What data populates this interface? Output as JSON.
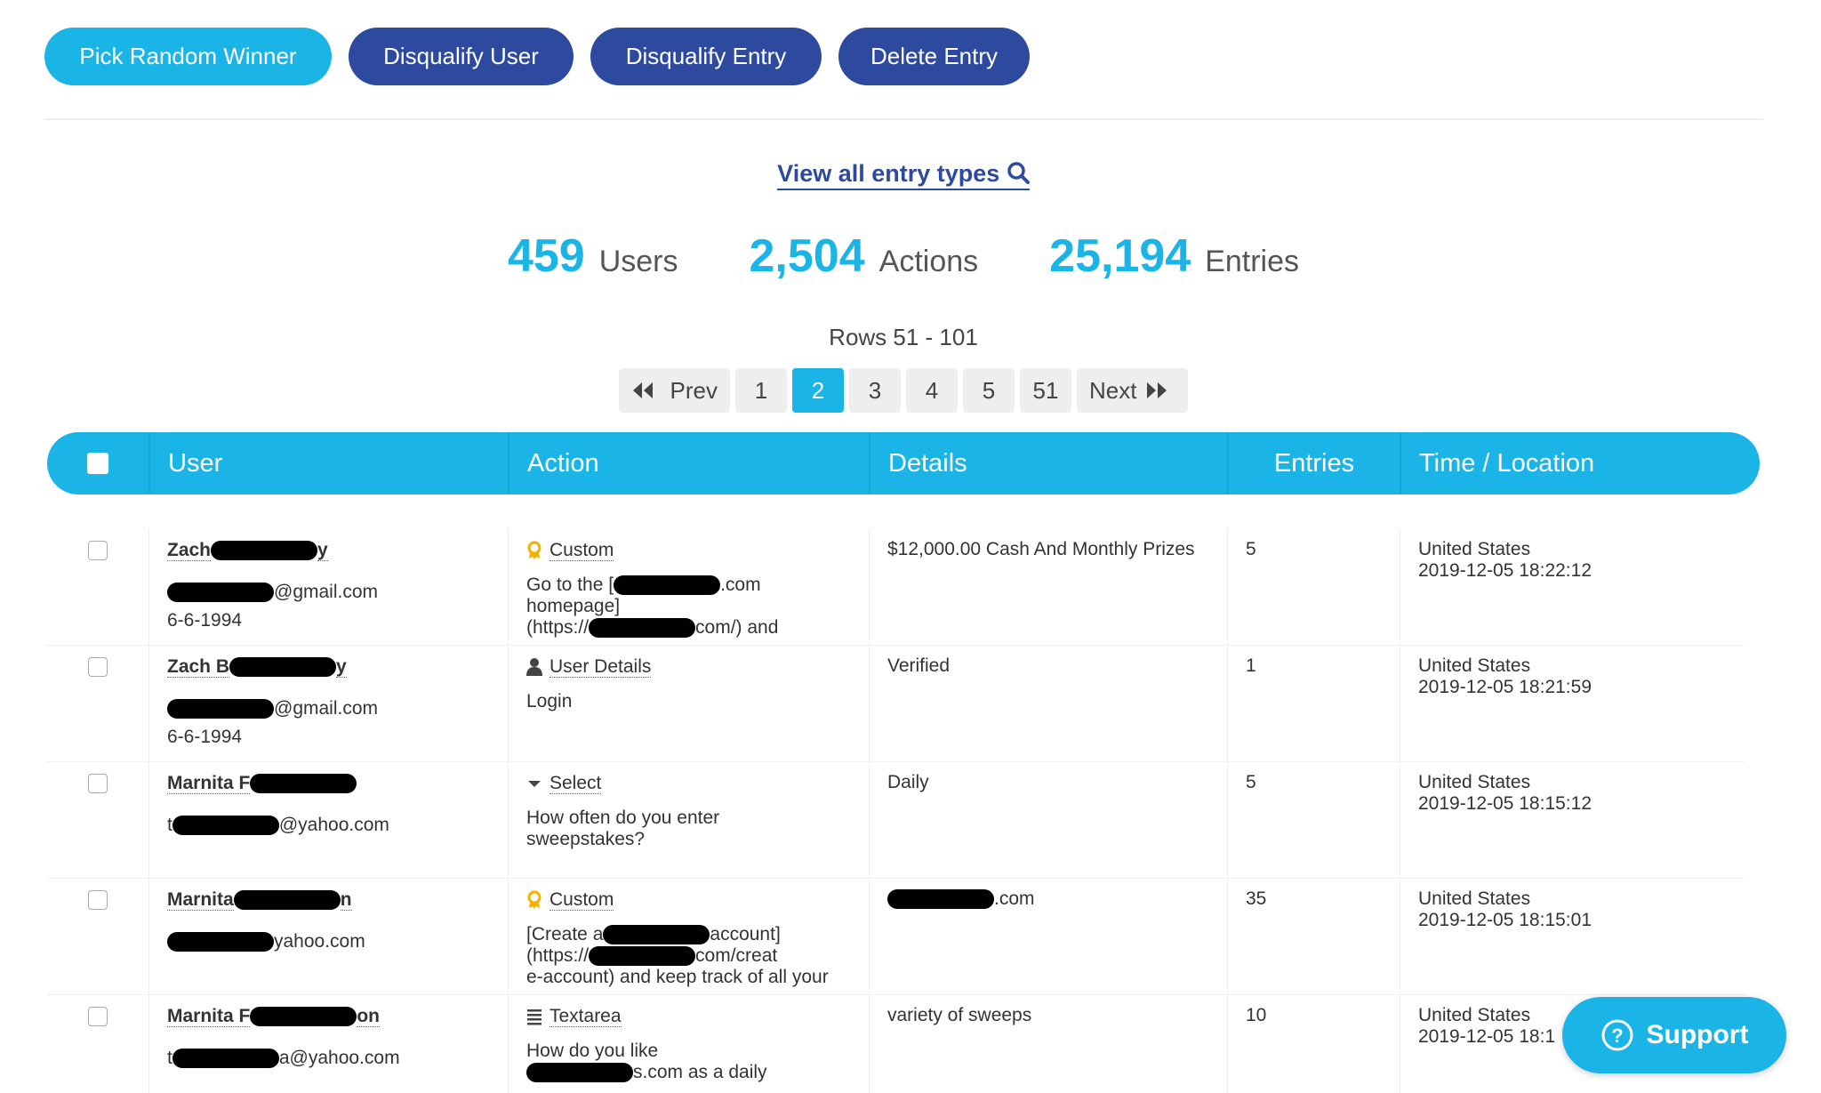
{
  "toolbar": {
    "buttons": [
      "Pick Random Winner",
      "Disqualify User",
      "Disqualify Entry",
      "Delete Entry"
    ]
  },
  "view_link": "View all entry types",
  "stats": [
    {
      "value": "459",
      "label": "Users"
    },
    {
      "value": "2,504",
      "label": "Actions"
    },
    {
      "value": "25,194",
      "label": "Entries"
    }
  ],
  "rows_label": "Rows 51 - 101",
  "pagination": {
    "prev": "Prev",
    "next": "Next",
    "pages": [
      {
        "label": "1",
        "active": false
      },
      {
        "label": "2",
        "active": true
      },
      {
        "label": "3",
        "active": false
      },
      {
        "label": "4",
        "active": false
      },
      {
        "label": "5",
        "active": false
      },
      {
        "label": "51",
        "active": false
      }
    ]
  },
  "table": {
    "headers": [
      "User",
      "Action",
      "Details",
      "Entries",
      "Time / Location"
    ],
    "rows": [
      {
        "name": [
          "Zach",
          null,
          "y"
        ],
        "email": [
          null,
          "@gmail.com"
        ],
        "dob": "6-6-1994",
        "action_icon": "award",
        "action": "Custom",
        "action_lines": [
          [
            "Go to the [",
            null,
            ".com"
          ],
          [
            "homepage]"
          ],
          [
            "(https://",
            null,
            "com/) and"
          ]
        ],
        "details": [
          [
            "$12,000.00 Cash And Monthly Prizes"
          ]
        ],
        "entries": 5,
        "country": "United States",
        "time": "2019-12-05 18:22:12"
      },
      {
        "name": [
          "Zach B",
          null,
          "y"
        ],
        "email": [
          null,
          "@gmail.com"
        ],
        "dob": "6-6-1994",
        "action_icon": "user",
        "action": "User Details",
        "action_lines": [
          [
            "Login"
          ]
        ],
        "details": [
          [
            "Verified"
          ]
        ],
        "entries": 1,
        "country": "United States",
        "time": "2019-12-05 18:21:59"
      },
      {
        "name": [
          "Marnita F",
          null
        ],
        "email": [
          "t",
          null,
          "@yahoo.com"
        ],
        "dob": null,
        "action_icon": "caret",
        "action": "Select",
        "action_lines": [
          [
            "How often do you enter"
          ],
          [
            "sweepstakes?"
          ]
        ],
        "details": [
          [
            "Daily"
          ]
        ],
        "entries": 5,
        "country": "United States",
        "time": "2019-12-05 18:15:12"
      },
      {
        "name": [
          "Marnita",
          null,
          "n"
        ],
        "email": [
          null,
          "yahoo.com"
        ],
        "dob": null,
        "action_icon": "award",
        "action": "Custom",
        "action_lines": [
          [
            "[Create a",
            null,
            "account]"
          ],
          [
            "(https://",
            null,
            "com/creat"
          ],
          [
            "e-account) and keep track of all your"
          ]
        ],
        "details": [
          [
            null,
            ".com"
          ]
        ],
        "entries": 35,
        "country": "United States",
        "time": "2019-12-05 18:15:01"
      },
      {
        "name": [
          "Marnita F",
          null,
          "on"
        ],
        "email": [
          "t",
          null,
          "a@yahoo.com"
        ],
        "dob": null,
        "action_icon": "lines",
        "action": "Textarea",
        "action_lines": [
          [
            "How do you like"
          ],
          [
            null,
            "s.com as a daily"
          ]
        ],
        "details": [
          [
            "variety of sweeps"
          ]
        ],
        "entries": 10,
        "country": "United States",
        "time": "2019-12-05 18:1"
      }
    ]
  },
  "support": "Support"
}
